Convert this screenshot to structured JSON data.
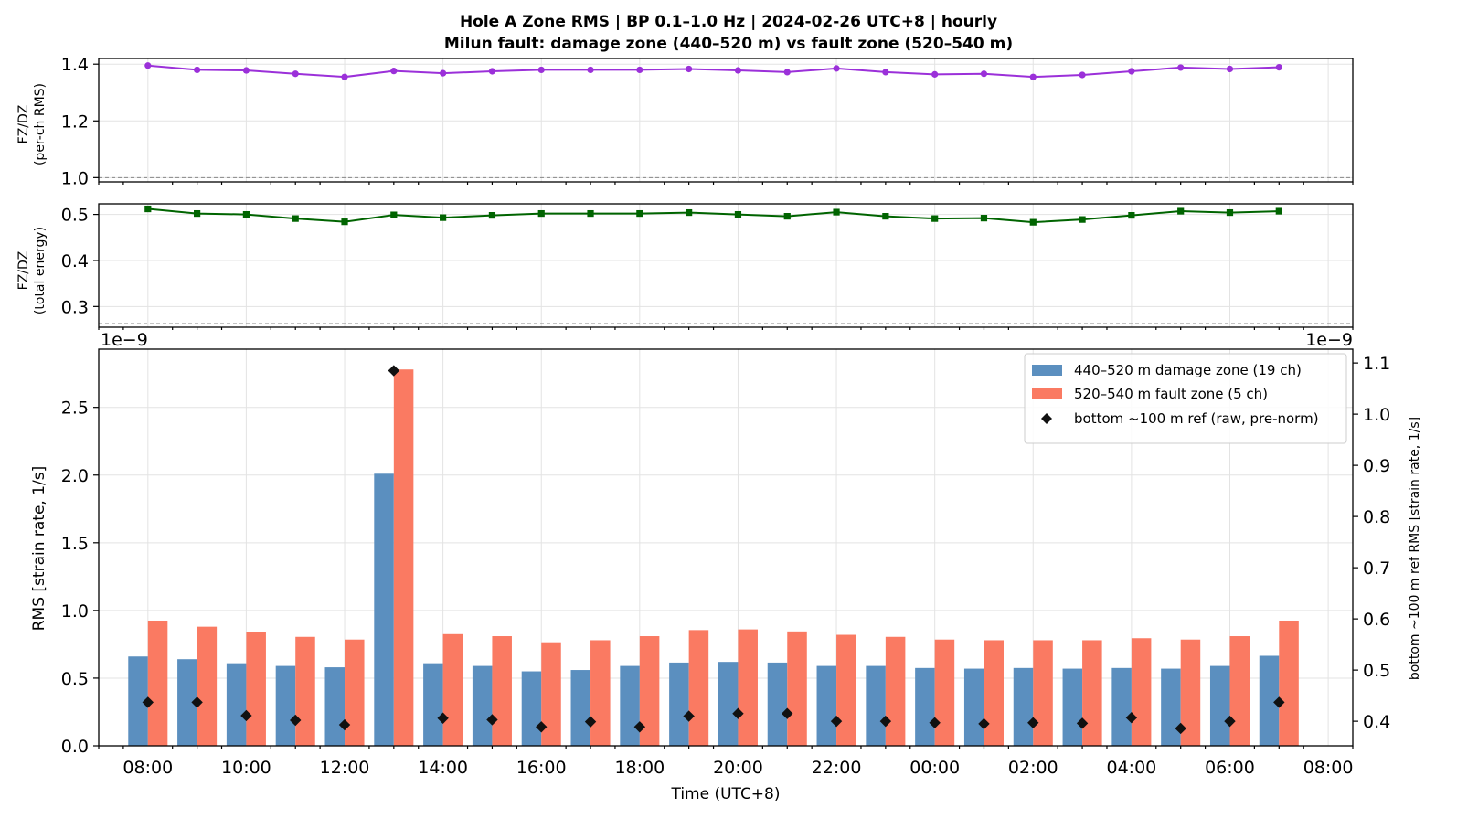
{
  "figure": {
    "title_line1": "Hole A Zone RMS  |  BP 0.1–1.0 Hz  |  2024-02-26 UTC+8  |  hourly",
    "title_line2": "Milun fault: damage zone (440–520 m) vs fault zone (520–540 m)"
  },
  "colors": {
    "ratio_rms": "#9b30d9",
    "ratio_energy": "#006400",
    "damage_zone": "#5b8fbf",
    "fault_zone": "#fa7a62",
    "reference": "#111111"
  },
  "chart_data": [
    {
      "id": "ratio_rms",
      "type": "line",
      "ylabel_line1": "FZ/DZ",
      "ylabel_line2": "(per-ch RMS)",
      "ylim": [
        0.985,
        1.42
      ],
      "yticks": [
        "1.0",
        "1.2",
        "1.4"
      ],
      "ytick_values": [
        1.0,
        1.2,
        1.4
      ],
      "reference_line": 1.0,
      "marker": "circle",
      "grid": true,
      "values": [
        1.395,
        1.38,
        1.378,
        1.366,
        1.355,
        1.376,
        1.368,
        1.375,
        1.38,
        1.38,
        1.38,
        1.383,
        1.378,
        1.372,
        1.385,
        1.372,
        1.364,
        1.366,
        1.355,
        1.362,
        1.375,
        1.388,
        1.383,
        1.389
      ]
    },
    {
      "id": "ratio_energy",
      "type": "line",
      "ylabel_line1": "FZ/DZ",
      "ylabel_line2": "(total energy)",
      "ylim": [
        0.255,
        0.523
      ],
      "yticks": [
        "0.3",
        "0.4",
        "0.5"
      ],
      "ytick_values": [
        0.3,
        0.4,
        0.5
      ],
      "reference_line": 0.263,
      "marker": "square",
      "grid": true,
      "values": [
        0.512,
        0.502,
        0.5,
        0.491,
        0.484,
        0.499,
        0.493,
        0.498,
        0.502,
        0.502,
        0.502,
        0.504,
        0.5,
        0.496,
        0.505,
        0.496,
        0.491,
        0.492,
        0.483,
        0.489,
        0.498,
        0.507,
        0.504,
        0.507
      ]
    },
    {
      "id": "zone_rms",
      "type": "bar",
      "xlabel": "Time (UTC+8)",
      "ylabel": "RMS  [strain rate, 1/s]",
      "ylabel_right": "bottom ~100 m ref RMS  [strain rate, 1/s]",
      "offset_left": "1e−9",
      "offset_right": "1e−9",
      "ylim": [
        0,
        2.93
      ],
      "yticks": [
        "0.0",
        "0.5",
        "1.0",
        "1.5",
        "2.0",
        "2.5"
      ],
      "ytick_values": [
        0,
        0.5,
        1.0,
        1.5,
        2.0,
        2.5
      ],
      "ylim_right": [
        0.352,
        1.127
      ],
      "yticks_right": [
        "0.4",
        "0.5",
        "0.6",
        "0.7",
        "0.8",
        "0.9",
        "1.0",
        "1.1"
      ],
      "ytick_values_right": [
        0.4,
        0.5,
        0.6,
        0.7,
        0.8,
        0.9,
        1.0,
        1.1
      ],
      "x_hours": [
        0,
        1,
        2,
        3,
        4,
        5,
        6,
        7,
        8,
        9,
        10,
        11,
        12,
        13,
        14,
        15,
        16,
        17,
        18,
        19,
        20,
        21,
        22,
        23
      ],
      "xlim": [
        -1,
        24.5
      ],
      "xtick_positions": [
        0,
        2,
        4,
        6,
        8,
        10,
        12,
        14,
        16,
        18,
        20,
        22,
        24
      ],
      "xtick_labels": [
        "08:00",
        "10:00",
        "12:00",
        "14:00",
        "16:00",
        "18:00",
        "20:00",
        "22:00",
        "00:00",
        "02:00",
        "04:00",
        "06:00",
        "08:00"
      ],
      "grid": true,
      "legend_position": "top-right",
      "series": [
        {
          "name": "440–520 m  damage zone (19 ch)",
          "values": [
            0.66,
            0.64,
            0.61,
            0.59,
            0.58,
            2.01,
            0.61,
            0.59,
            0.55,
            0.56,
            0.59,
            0.615,
            0.62,
            0.615,
            0.59,
            0.59,
            0.575,
            0.57,
            0.575,
            0.57,
            0.575,
            0.57,
            0.59,
            0.665
          ]
        },
        {
          "name": "520–540 m  fault zone (5 ch)",
          "values": [
            0.925,
            0.88,
            0.84,
            0.805,
            0.785,
            2.78,
            0.825,
            0.81,
            0.765,
            0.78,
            0.81,
            0.855,
            0.86,
            0.845,
            0.82,
            0.805,
            0.785,
            0.78,
            0.78,
            0.78,
            0.795,
            0.785,
            0.81,
            0.925
          ]
        },
        {
          "name": "bottom ~100 m ref (raw, pre-norm)",
          "axis": "right",
          "marker": "diamond",
          "values": [
            0.437,
            0.437,
            0.411,
            0.402,
            0.393,
            1.085,
            0.406,
            0.403,
            0.389,
            0.399,
            0.389,
            0.41,
            0.415,
            0.415,
            0.4,
            0.4,
            0.397,
            0.395,
            0.397,
            0.396,
            0.407,
            0.386,
            0.4,
            0.437
          ]
        }
      ]
    }
  ]
}
